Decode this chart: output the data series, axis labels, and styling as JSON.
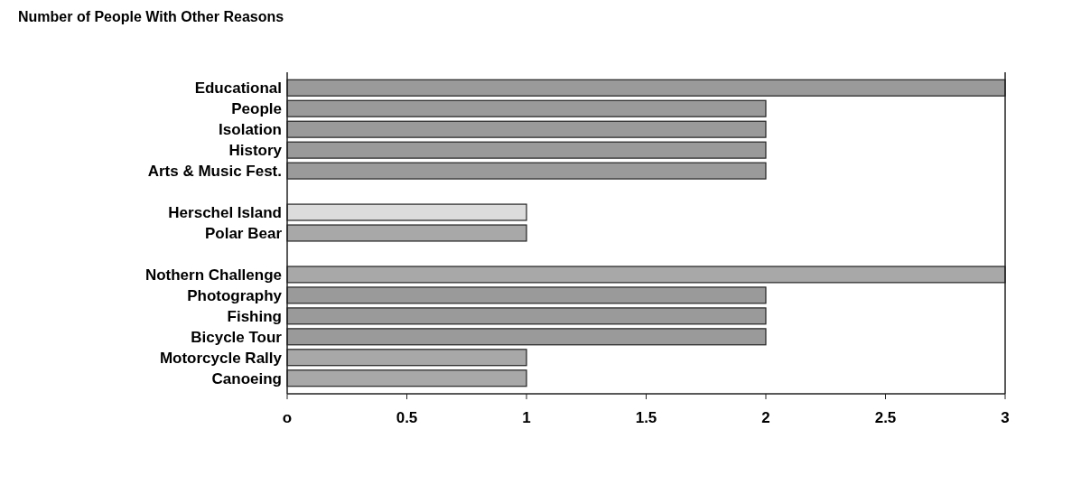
{
  "chart_data": {
    "type": "bar",
    "orientation": "horizontal",
    "title": "Number of People With Other Reasons",
    "categories": [
      "Educational",
      "People",
      "Isolation",
      "History",
      "Arts & Music Fest.",
      null,
      "Herschel Island",
      "Polar Bear",
      null,
      "Nothern Challenge",
      "Photography",
      "Fishing",
      "Bicycle Tour",
      "Motorcycle Rally",
      "Canoeing"
    ],
    "values": [
      3,
      2,
      2,
      2,
      2,
      null,
      1,
      1,
      null,
      3,
      2,
      2,
      2,
      1,
      1
    ],
    "colors": [
      "#9a9a9a",
      "#9a9a9a",
      "#9a9a9a",
      "#9a9a9a",
      "#9a9a9a",
      null,
      "#dcdcdc",
      "#a8a8a8",
      null,
      "#a8a8a8",
      "#9a9a9a",
      "#9a9a9a",
      "#9a9a9a",
      "#a8a8a8",
      "#a8a8a8"
    ],
    "xlim": [
      0,
      3
    ],
    "xticks": [
      {
        "value": 0,
        "label": "o"
      },
      0.5,
      1,
      1.5,
      2,
      2.5,
      3
    ],
    "grid": false
  }
}
